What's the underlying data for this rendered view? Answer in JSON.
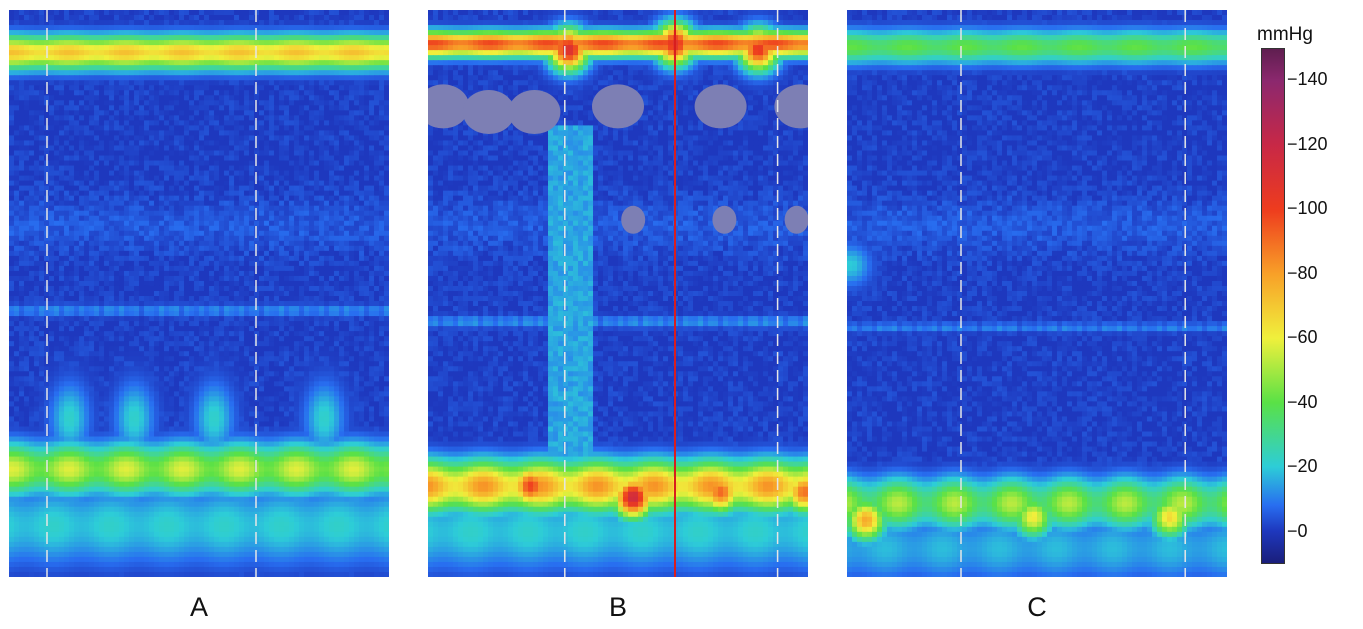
{
  "chart_data": [
    {
      "type": "heatmap",
      "panel": "A",
      "label": "A",
      "color_range": [
        -10,
        150
      ],
      "bands": [
        {
          "center": 0.075,
          "width": 0.03,
          "peak": 70,
          "modulation": 4
        },
        {
          "center": 0.81,
          "width": 0.045,
          "peak": 52,
          "modulation": 8
        },
        {
          "center": 0.91,
          "width": 0.07,
          "peak": 22,
          "modulation": 2
        },
        {
          "center": 0.53,
          "width": 0.012,
          "peak": 15,
          "modulation": 1,
          "striped": true
        }
      ],
      "wave_peaks": [
        0.16,
        0.33,
        0.54,
        0.83
      ],
      "dashed_markers": [
        0.1,
        0.65
      ],
      "cursor": null
    },
    {
      "type": "heatmap",
      "panel": "B",
      "label": "B",
      "color_range": [
        -10,
        150
      ],
      "bands": [
        {
          "center": 0.06,
          "width": 0.022,
          "peak": 95,
          "modulation": 6
        },
        {
          "center": 0.84,
          "width": 0.045,
          "peak": 75,
          "modulation": 10
        },
        {
          "center": 0.92,
          "width": 0.07,
          "peak": 22,
          "modulation": 2
        },
        {
          "center": 0.55,
          "width": 0.012,
          "peak": 16,
          "modulation": 1,
          "striped": true
        }
      ],
      "hot_spots": [
        {
          "x": 0.27,
          "y": 0.84,
          "value": 100
        },
        {
          "x": 0.54,
          "y": 0.86,
          "value": 118
        },
        {
          "x": 0.77,
          "y": 0.85,
          "value": 92
        },
        {
          "x": 0.99,
          "y": 0.85,
          "value": 90
        },
        {
          "x": 0.37,
          "y": 0.07,
          "value": 112
        },
        {
          "x": 0.65,
          "y": 0.06,
          "value": 108
        },
        {
          "x": 0.87,
          "y": 0.07,
          "value": 104
        }
      ],
      "negative_blobs": [
        {
          "x": 0.04,
          "y": 0.17
        },
        {
          "x": 0.16,
          "y": 0.18
        },
        {
          "x": 0.28,
          "y": 0.18
        },
        {
          "x": 0.5,
          "y": 0.17
        },
        {
          "x": 0.77,
          "y": 0.17
        },
        {
          "x": 0.98,
          "y": 0.17
        },
        {
          "x": 0.54,
          "y": 0.37
        },
        {
          "x": 0.78,
          "y": 0.37
        },
        {
          "x": 0.97,
          "y": 0.37
        }
      ],
      "elevated_columns": [
        0.32,
        0.43
      ],
      "dashed_markers": [
        0.36,
        0.92
      ],
      "cursor": 0.65
    },
    {
      "type": "heatmap",
      "panel": "C",
      "label": "C",
      "color_range": [
        -10,
        150
      ],
      "bands": [
        {
          "center": 0.065,
          "width": 0.03,
          "peak": 40,
          "modulation": 3
        },
        {
          "center": 0.87,
          "width": 0.045,
          "peak": 45,
          "modulation": 10
        },
        {
          "center": 0.95,
          "width": 0.06,
          "peak": 18,
          "modulation": 2
        },
        {
          "center": 0.56,
          "width": 0.01,
          "peak": 14,
          "modulation": 1,
          "striped": true
        }
      ],
      "hot_spots": [
        {
          "x": 0.05,
          "y": 0.9,
          "value": 78
        },
        {
          "x": 0.49,
          "y": 0.895,
          "value": 62
        },
        {
          "x": 0.85,
          "y": 0.895,
          "value": 66
        },
        {
          "x": 0.01,
          "y": 0.45,
          "value": 20
        }
      ],
      "dashed_markers": [
        0.3,
        0.89
      ],
      "cursor": null
    }
  ],
  "colorbar": {
    "unit": "mmHg",
    "range": [
      -10,
      150
    ],
    "ticks": [
      "140",
      "120",
      "100",
      "80",
      "60",
      "40",
      "20",
      "0"
    ],
    "tick_values": [
      140,
      120,
      100,
      80,
      60,
      40,
      20,
      0
    ],
    "tick_prefix": "−"
  },
  "colors": {
    "marker": "#e6e6e6",
    "cursor": "#d81e1e",
    "negative_fill": "#7d7fb4"
  },
  "labels": {
    "a": "A",
    "b": "B",
    "c": "C"
  }
}
